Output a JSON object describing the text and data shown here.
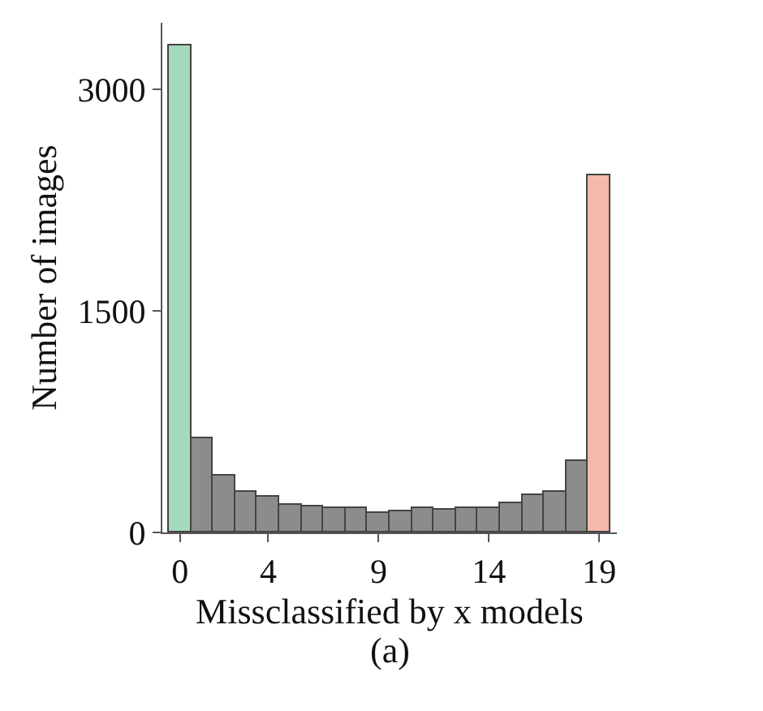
{
  "chart_data": {
    "type": "bar",
    "xlabel": "Missclassified by x models",
    "ylabel": "Number of images",
    "x": [
      0,
      1,
      2,
      3,
      4,
      5,
      6,
      7,
      8,
      9,
      10,
      11,
      12,
      13,
      14,
      15,
      16,
      17,
      18,
      19
    ],
    "values": [
      3300,
      640,
      390,
      280,
      240,
      190,
      180,
      160,
      160,
      130,
      140,
      160,
      150,
      160,
      170,
      200,
      250,
      280,
      480,
      2420
    ],
    "colors": [
      "#a3d9bd",
      "#8c8c8c",
      "#8c8c8c",
      "#8c8c8c",
      "#8c8c8c",
      "#8c8c8c",
      "#8c8c8c",
      "#8c8c8c",
      "#8c8c8c",
      "#8c8c8c",
      "#8c8c8c",
      "#8c8c8c",
      "#8c8c8c",
      "#8c8c8c",
      "#8c8c8c",
      "#8c8c8c",
      "#8c8c8c",
      "#8c8c8c",
      "#8c8c8c",
      "#f5b9ac"
    ],
    "xlim": [
      -0.8,
      19.8
    ],
    "xticks": [
      0,
      4,
      9,
      14,
      19
    ],
    "ylim": [
      0,
      3450
    ],
    "yticks": [
      0,
      1500,
      3000
    ],
    "annotations": [
      "(a)"
    ]
  }
}
